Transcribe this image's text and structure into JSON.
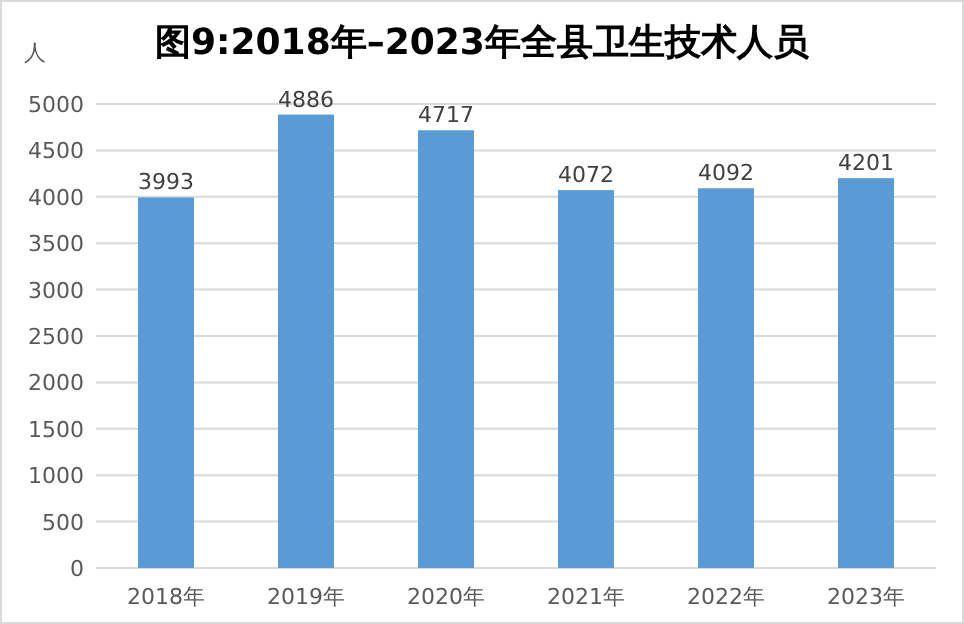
{
  "chart_data": {
    "type": "bar",
    "title": "图9:2018年–2023年全县卫生技术人员",
    "ylabel": "人",
    "categories": [
      "2018年",
      "2019年",
      "2020年",
      "2021年",
      "2022年",
      "2023年"
    ],
    "values": [
      3993,
      4886,
      4717,
      4072,
      4092,
      4201
    ],
    "color": "#5b9bd5",
    "ylim": [
      0,
      5000
    ],
    "yticks": [
      0,
      500,
      1000,
      1500,
      2000,
      2500,
      3000,
      3500,
      4000,
      4500,
      5000
    ],
    "grid": "y",
    "data_labels": true
  }
}
